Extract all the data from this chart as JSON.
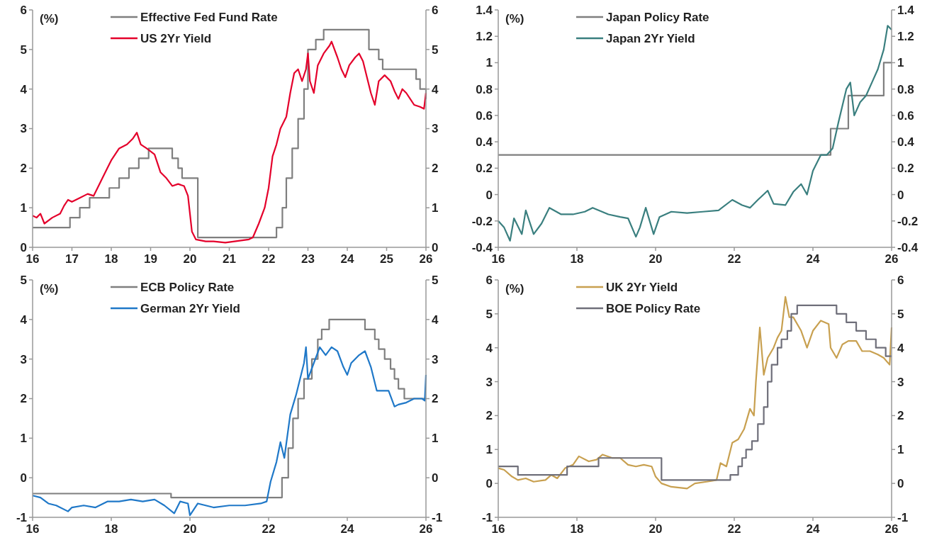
{
  "chart_data": [
    {
      "type": "line",
      "ylabel": "(%)",
      "xlim": [
        16,
        26
      ],
      "xticks": [
        16,
        17,
        18,
        19,
        20,
        21,
        22,
        23,
        24,
        25,
        26
      ],
      "ylim": [
        0,
        6
      ],
      "yticks": [
        0,
        1,
        2,
        3,
        4,
        5,
        6
      ],
      "y2lim": [
        0,
        6
      ],
      "y2ticks": [
        0,
        1,
        2,
        3,
        4,
        5,
        6
      ],
      "legend": "top left",
      "series": [
        {
          "name": "Effective Fed Fund Rate",
          "type": "step",
          "color": "#7f7f7f",
          "x": [
            16,
            16.95,
            17.2,
            17.45,
            17.95,
            18.2,
            18.45,
            18.7,
            18.95,
            19.55,
            19.7,
            19.8,
            20.2,
            22.2,
            22.35,
            22.45,
            22.6,
            22.75,
            22.9,
            23.0,
            23.2,
            23.4,
            24.55,
            24.8,
            24.9,
            25.75,
            25.85,
            26.0
          ],
          "values": [
            0.5,
            0.75,
            1.0,
            1.25,
            1.5,
            1.75,
            2.0,
            2.25,
            2.5,
            2.25,
            2.0,
            1.75,
            0.25,
            0.5,
            1.0,
            1.75,
            2.5,
            3.25,
            4.0,
            5.0,
            5.25,
            5.5,
            5.0,
            4.75,
            4.5,
            4.25,
            4.0,
            3.75
          ]
        },
        {
          "name": "US 2Yr Yield",
          "color": "#e4002b",
          "x": [
            16.0,
            16.1,
            16.2,
            16.3,
            16.5,
            16.7,
            16.8,
            16.9,
            17.0,
            17.2,
            17.4,
            17.55,
            17.7,
            17.9,
            18.0,
            18.2,
            18.4,
            18.55,
            18.65,
            18.75,
            18.9,
            19.1,
            19.25,
            19.4,
            19.55,
            19.7,
            19.85,
            19.95,
            20.05,
            20.15,
            20.4,
            20.6,
            20.9,
            21.2,
            21.5,
            21.6,
            21.75,
            21.9,
            22.0,
            22.1,
            22.2,
            22.3,
            22.45,
            22.55,
            22.65,
            22.75,
            22.85,
            22.95,
            23.0,
            23.05,
            23.15,
            23.25,
            23.4,
            23.55,
            23.6,
            23.75,
            23.85,
            23.95,
            24.05,
            24.2,
            24.3,
            24.4,
            24.5,
            24.6,
            24.7,
            24.8,
            24.95,
            25.1,
            25.2,
            25.3,
            25.4,
            25.5,
            25.6,
            25.7,
            25.85,
            25.95,
            26.0
          ],
          "values": [
            0.8,
            0.75,
            0.85,
            0.6,
            0.75,
            0.85,
            1.05,
            1.2,
            1.15,
            1.25,
            1.35,
            1.3,
            1.6,
            2.0,
            2.2,
            2.5,
            2.6,
            2.75,
            2.9,
            2.6,
            2.5,
            2.35,
            1.9,
            1.75,
            1.55,
            1.6,
            1.55,
            1.3,
            0.4,
            0.2,
            0.15,
            0.15,
            0.12,
            0.16,
            0.2,
            0.25,
            0.6,
            1.0,
            1.5,
            2.3,
            2.6,
            3.0,
            3.3,
            3.9,
            4.4,
            4.5,
            4.2,
            4.5,
            4.9,
            4.2,
            3.9,
            4.6,
            4.9,
            5.1,
            5.2,
            4.8,
            4.5,
            4.3,
            4.6,
            4.8,
            4.9,
            4.7,
            4.3,
            3.9,
            3.6,
            4.2,
            4.35,
            4.2,
            3.95,
            3.75,
            4.0,
            3.9,
            3.75,
            3.6,
            3.55,
            3.5,
            3.9
          ]
        }
      ]
    },
    {
      "type": "line",
      "ylabel": "(%)",
      "xlim": [
        16,
        26
      ],
      "xticks": [
        16,
        18,
        20,
        22,
        24,
        26
      ],
      "ylim": [
        -0.4,
        1.4
      ],
      "yticks": [
        -0.4,
        -0.2,
        0,
        0.2,
        0.4,
        0.6,
        0.8,
        1,
        1.2,
        1.4
      ],
      "y2lim": [
        -0.4,
        1.4
      ],
      "y2ticks": [
        -0.4,
        -0.2,
        0,
        0.2,
        0.4,
        0.6,
        0.8,
        1,
        1.2,
        1.4
      ],
      "legend": "top left",
      "series": [
        {
          "name": "Japan Policy Rate",
          "type": "step",
          "color": "#7f7f7f",
          "x": [
            16,
            24.09,
            24.45,
            24.9,
            25.8,
            26.0
          ],
          "values": [
            0.3,
            0.3,
            0.5,
            0.75,
            1.0,
            1.0
          ]
        },
        {
          "name": "Japan 2Yr Yield",
          "color": "#3a7f7f",
          "x": [
            16.0,
            16.15,
            16.3,
            16.4,
            16.6,
            16.7,
            16.9,
            17.1,
            17.3,
            17.6,
            17.9,
            18.2,
            18.4,
            18.8,
            19.1,
            19.3,
            19.5,
            19.6,
            19.75,
            19.95,
            20.1,
            20.4,
            20.8,
            21.2,
            21.6,
            21.95,
            22.2,
            22.4,
            22.6,
            22.85,
            23.0,
            23.3,
            23.5,
            23.7,
            23.85,
            24.0,
            24.2,
            24.35,
            24.5,
            24.65,
            24.85,
            24.95,
            25.05,
            25.2,
            25.35,
            25.5,
            25.65,
            25.8,
            25.9,
            26.0
          ],
          "values": [
            -0.2,
            -0.25,
            -0.35,
            -0.18,
            -0.3,
            -0.12,
            -0.3,
            -0.22,
            -0.1,
            -0.15,
            -0.15,
            -0.13,
            -0.1,
            -0.15,
            -0.17,
            -0.18,
            -0.32,
            -0.25,
            -0.1,
            -0.3,
            -0.17,
            -0.13,
            -0.14,
            -0.13,
            -0.12,
            -0.04,
            -0.08,
            -0.1,
            -0.04,
            0.03,
            -0.07,
            -0.08,
            0.02,
            0.08,
            0.0,
            0.18,
            0.3,
            0.3,
            0.35,
            0.55,
            0.8,
            0.85,
            0.6,
            0.7,
            0.75,
            0.85,
            0.95,
            1.1,
            1.28,
            1.25
          ]
        }
      ]
    },
    {
      "type": "line",
      "ylabel": "(%)",
      "xlim": [
        16,
        26
      ],
      "xticks": [
        16,
        18,
        20,
        22,
        24,
        26
      ],
      "ylim": [
        -1,
        5
      ],
      "yticks": [
        -1,
        0,
        1,
        2,
        3,
        4,
        5
      ],
      "y2lim": [
        -1,
        5
      ],
      "y2ticks": [
        -1,
        0,
        1,
        2,
        3,
        4,
        5
      ],
      "legend": "top left",
      "series": [
        {
          "name": "ECB Policy Rate",
          "type": "step",
          "color": "#7f7f7f",
          "x": [
            16,
            19.52,
            22.34,
            22.5,
            22.62,
            22.75,
            22.9,
            23.1,
            23.25,
            23.35,
            23.54,
            24.45,
            24.7,
            24.8,
            24.95,
            25.1,
            25.2,
            25.3,
            25.45,
            26.0
          ],
          "values": [
            -0.4,
            -0.5,
            0.0,
            0.75,
            1.5,
            2.0,
            2.5,
            3.0,
            3.5,
            3.75,
            4.0,
            3.75,
            3.5,
            3.25,
            3.0,
            2.75,
            2.5,
            2.25,
            2.0,
            2.0
          ]
        },
        {
          "name": "German 2Yr Yield",
          "color": "#1f78c8",
          "x": [
            16.0,
            16.2,
            16.4,
            16.6,
            16.9,
            17.0,
            17.3,
            17.6,
            17.9,
            18.2,
            18.5,
            18.8,
            19.1,
            19.35,
            19.6,
            19.75,
            19.95,
            20.0,
            20.2,
            20.6,
            21.0,
            21.4,
            21.8,
            21.95,
            22.05,
            22.2,
            22.3,
            22.4,
            22.55,
            22.7,
            22.8,
            22.9,
            22.95,
            23.0,
            23.15,
            23.3,
            23.45,
            23.6,
            23.75,
            23.9,
            24.0,
            24.1,
            24.3,
            24.45,
            24.6,
            24.75,
            24.9,
            25.05,
            25.2,
            25.3,
            25.5,
            25.7,
            25.9,
            25.97,
            26.0
          ],
          "values": [
            -0.45,
            -0.5,
            -0.65,
            -0.7,
            -0.85,
            -0.75,
            -0.7,
            -0.75,
            -0.6,
            -0.6,
            -0.55,
            -0.6,
            -0.55,
            -0.7,
            -0.9,
            -0.6,
            -0.65,
            -0.95,
            -0.65,
            -0.75,
            -0.7,
            -0.7,
            -0.65,
            -0.6,
            -0.1,
            0.4,
            0.9,
            0.5,
            1.6,
            2.1,
            2.5,
            2.9,
            3.3,
            2.5,
            2.9,
            3.3,
            3.1,
            3.3,
            3.2,
            2.8,
            2.6,
            2.9,
            3.1,
            3.2,
            2.8,
            2.2,
            2.2,
            2.2,
            1.8,
            1.85,
            1.9,
            2.0,
            2.0,
            1.95,
            2.6
          ]
        }
      ]
    },
    {
      "type": "line",
      "ylabel": "(%)",
      "xlim": [
        16,
        26
      ],
      "xticks": [
        16,
        18,
        20,
        22,
        24,
        26
      ],
      "ylim": [
        -1,
        6
      ],
      "yticks": [
        -1,
        0,
        1,
        2,
        3,
        4,
        5,
        6
      ],
      "y2lim": [
        -1,
        6
      ],
      "y2ticks": [
        -1,
        0,
        1,
        2,
        3,
        4,
        5,
        6
      ],
      "legend": "top left",
      "series": [
        {
          "name": "UK 2Yr Yield",
          "color": "#c8a050",
          "x": [
            16.0,
            16.15,
            16.35,
            16.5,
            16.7,
            16.9,
            17.2,
            17.35,
            17.5,
            17.7,
            17.9,
            18.05,
            18.3,
            18.5,
            18.65,
            18.9,
            19.1,
            19.3,
            19.5,
            19.7,
            19.9,
            20.0,
            20.15,
            20.4,
            20.8,
            21.0,
            21.3,
            21.55,
            21.65,
            21.8,
            21.95,
            22.1,
            22.25,
            22.4,
            22.5,
            22.55,
            22.65,
            22.75,
            22.85,
            23.0,
            23.1,
            23.2,
            23.3,
            23.4,
            23.5,
            23.7,
            23.85,
            24.0,
            24.2,
            24.4,
            24.45,
            24.6,
            24.75,
            24.9,
            25.1,
            25.25,
            25.45,
            25.65,
            25.8,
            25.95,
            26.0
          ],
          "values": [
            0.45,
            0.4,
            0.2,
            0.1,
            0.15,
            0.05,
            0.1,
            0.25,
            0.15,
            0.45,
            0.55,
            0.8,
            0.65,
            0.7,
            0.85,
            0.75,
            0.75,
            0.55,
            0.5,
            0.55,
            0.5,
            0.2,
            0.0,
            -0.1,
            -0.15,
            0.0,
            0.05,
            0.1,
            0.6,
            0.5,
            1.2,
            1.3,
            1.6,
            2.2,
            2.0,
            3.0,
            4.6,
            3.2,
            3.7,
            4.0,
            4.3,
            4.5,
            5.5,
            4.9,
            4.9,
            4.5,
            4.0,
            4.5,
            4.8,
            4.7,
            4.0,
            3.7,
            4.1,
            4.2,
            4.2,
            3.9,
            3.9,
            3.8,
            3.7,
            3.5,
            4.6
          ]
        },
        {
          "name": "BOE Policy Rate",
          "type": "step",
          "color": "#6f6f7a",
          "x": [
            16,
            16.5,
            17.75,
            18.55,
            20.15,
            21.9,
            22.1,
            22.2,
            22.3,
            22.45,
            22.6,
            22.75,
            22.85,
            22.95,
            23.1,
            23.2,
            23.35,
            23.45,
            23.6,
            24.6,
            24.85,
            25.1,
            25.35,
            25.6,
            25.85,
            26.0
          ],
          "values": [
            0.5,
            0.25,
            0.5,
            0.75,
            0.1,
            0.25,
            0.5,
            0.75,
            1.0,
            1.25,
            1.75,
            2.25,
            3.0,
            3.5,
            4.0,
            4.25,
            4.5,
            5.0,
            5.25,
            5.0,
            4.75,
            4.5,
            4.25,
            4.0,
            3.75,
            3.75
          ]
        }
      ]
    }
  ]
}
